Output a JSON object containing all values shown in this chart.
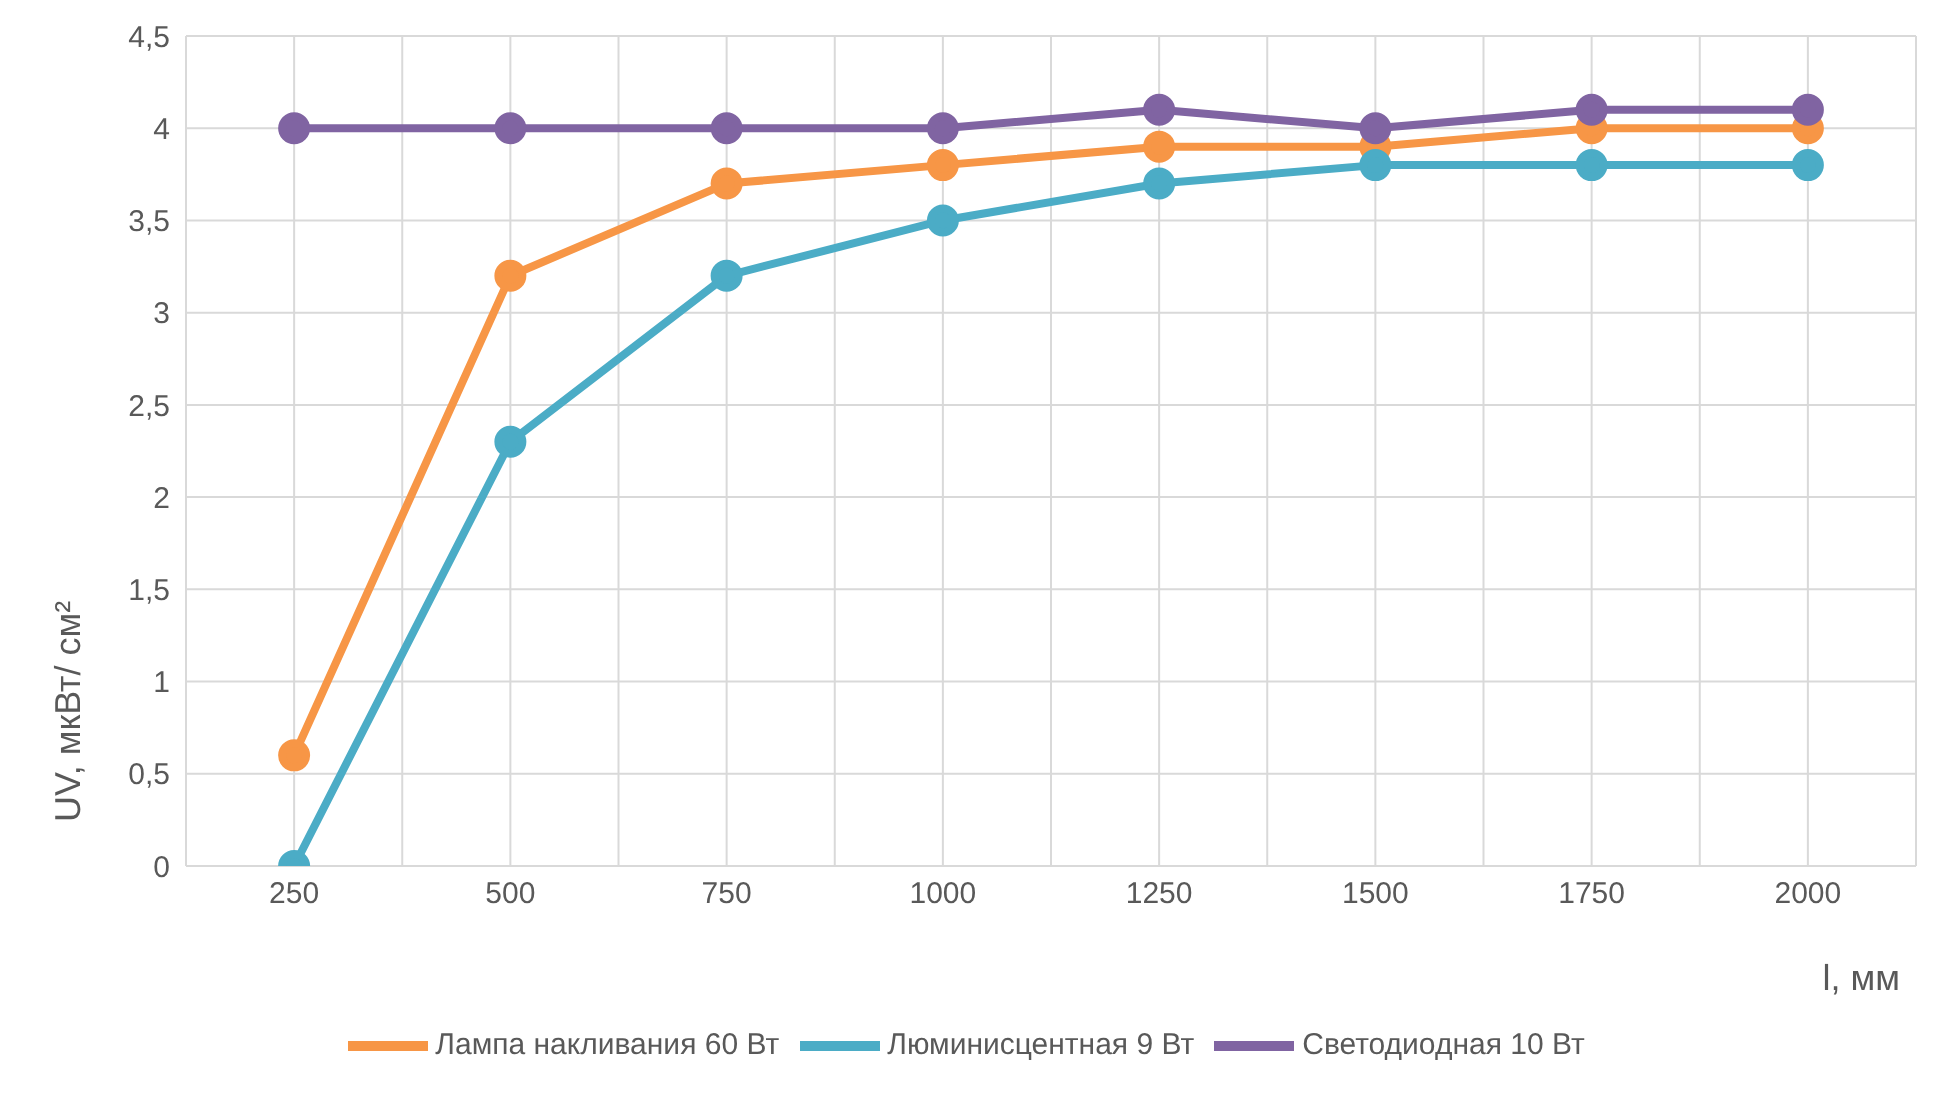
{
  "chart_data": {
    "type": "line",
    "xlabel": "l, мм",
    "ylabel": "UV, мкВт/ см²",
    "x": [
      250,
      500,
      750,
      1000,
      1250,
      1500,
      1750,
      2000
    ],
    "xlim": [
      125,
      2125
    ],
    "xticks": [
      {
        "value": 125,
        "label": null
      },
      250,
      {
        "value": 375,
        "label": null
      },
      500,
      {
        "value": 625,
        "label": null
      },
      750,
      {
        "value": 875,
        "label": null
      },
      1000,
      {
        "value": 1125,
        "label": null
      },
      1250,
      {
        "value": 1375,
        "label": null
      },
      1500,
      {
        "value": 1625,
        "label": null
      },
      1750,
      {
        "value": 1875,
        "label": null
      },
      2000,
      {
        "value": 2125,
        "label": null
      }
    ],
    "ylim": [
      0,
      4.5
    ],
    "yticks": [
      0,
      {
        "value": 0.5,
        "label": "0,5"
      },
      1,
      {
        "value": 1.5,
        "label": "1,5"
      },
      2,
      {
        "value": 2.5,
        "label": "2,5"
      },
      3,
      {
        "value": 3.5,
        "label": "3,5"
      },
      4,
      {
        "value": 4.5,
        "label": "4,5"
      }
    ],
    "series": [
      {
        "name": "Лампа накливания 60 Вт",
        "color": "#f79646",
        "values": [
          0.6,
          3.2,
          3.7,
          3.8,
          3.9,
          3.9,
          4.0,
          4.0
        ]
      },
      {
        "name": "Люминисцентная 9 Вт",
        "color": "#4bacc6",
        "values": [
          0,
          2.3,
          3.2,
          3.5,
          3.7,
          3.8,
          3.8,
          3.8
        ]
      },
      {
        "name": "Светодиодная 10 Вт",
        "color": "#8064a2",
        "values": [
          4,
          4,
          4,
          4,
          4.1,
          4,
          4.1,
          4.1
        ]
      }
    ],
    "grid": true,
    "legend": "bottom",
    "marker": "circle",
    "line_style": "solid"
  }
}
